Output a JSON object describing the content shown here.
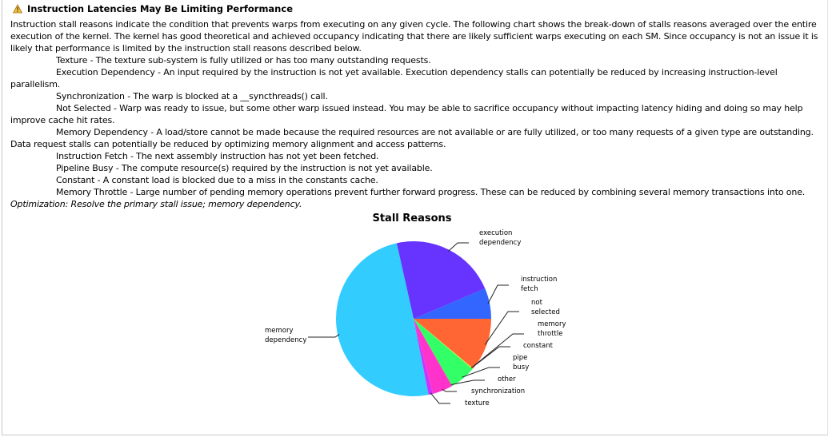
{
  "header": {
    "icon": "warning-icon",
    "title": "Instruction Latencies May Be Limiting Performance"
  },
  "intro": "Instruction stall reasons indicate the condition that prevents warps from executing on any given cycle. The following chart shows the break-down of stalls reasons averaged over the entire execution of the kernel. The kernel has good theoretical and achieved occupancy indicating that there are likely sufficient warps executing on each SM. Since occupancy is not an issue it is likely that performance is limited by the instruction stall reasons described below.",
  "reasons": [
    "Texture - The texture sub-system is fully utilized or has too many outstanding requests.",
    "Execution Dependency - An input required by the instruction is not yet available. Execution dependency stalls can potentially be reduced by increasing instruction-level parallelism.",
    "Synchronization - The warp is blocked at a __syncthreads() call.",
    "Not Selected - Warp was ready to issue, but some other warp issued instead. You may be able to sacrifice occupancy without impacting latency hiding and doing so may help improve cache hit rates.",
    "Memory Dependency - A load/store cannot be made because the required resources are not available or are fully utilized, or too many requests of a given type are outstanding. Data request stalls can potentially be reduced by optimizing memory alignment and access patterns.",
    "Instruction Fetch - The next assembly instruction has not yet been fetched.",
    "Pipeline Busy - The compute resource(s) required by the instruction is not yet available.",
    "Constant - A constant load is blocked due to a miss in the constants cache.",
    "Memory Throttle - Large number of pending memory operations prevent further forward progress. These can be reduced by combining several memory transactions into one."
  ],
  "optimization": "Optimization: Resolve the primary stall issue; memory dependency.",
  "chart_data": {
    "type": "pie",
    "title": "Stall Reasons",
    "unit": "percent (estimated)",
    "slices": [
      {
        "name": "instruction fetch",
        "value": 6.4,
        "color": "#3366ff"
      },
      {
        "name": "execution dependency",
        "value": 22.1,
        "color": "#6633ff"
      },
      {
        "name": "memory dependency",
        "value": 49.6,
        "color": "#33ccff"
      },
      {
        "name": "texture",
        "value": 0.9,
        "color": "#cc33ff"
      },
      {
        "name": "synchronization",
        "value": 4.2,
        "color": "#ff33cc"
      },
      {
        "name": "other",
        "value": 0.1,
        "color": "#ff3366"
      },
      {
        "name": "pipe busy",
        "value": 5.4,
        "color": "#33ff66"
      },
      {
        "name": "constant",
        "value": 0.1,
        "color": "#66ff33"
      },
      {
        "name": "memory throttle",
        "value": 0.1,
        "color": "#ccff33"
      },
      {
        "name": "not selected",
        "value": 11.1,
        "color": "#ff6633"
      }
    ]
  }
}
